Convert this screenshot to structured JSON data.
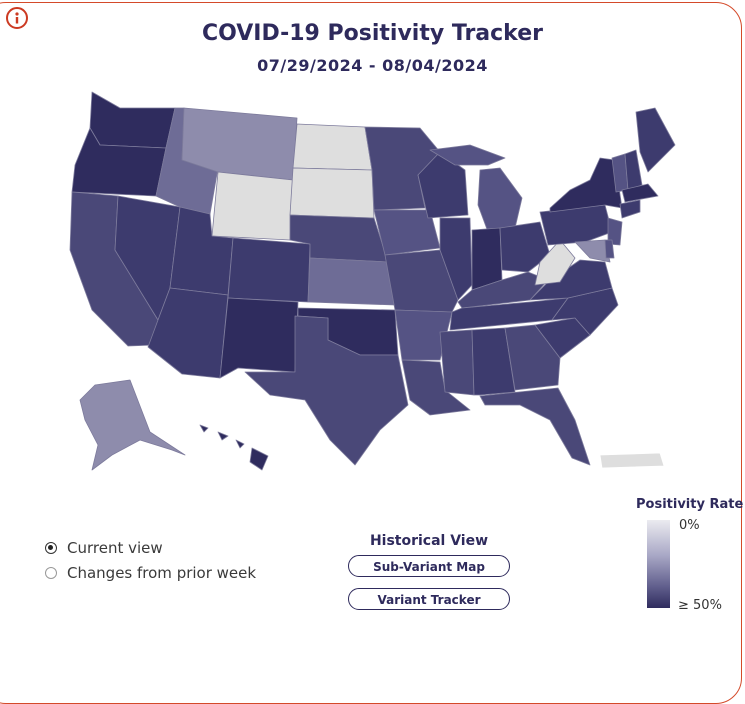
{
  "title": "COVID-19 Positivity Tracker",
  "date_range": "07/29/2024 - 08/04/2024",
  "view_options": [
    {
      "label": "Current view",
      "selected": true
    },
    {
      "label": "Changes from prior week",
      "selected": false
    }
  ],
  "historical": {
    "title": "Historical View",
    "buttons": [
      "Sub-Variant Map",
      "Variant Tracker"
    ]
  },
  "legend": {
    "title": "Positivity Rate",
    "low_label": "0%",
    "high_label": "≥ 50%"
  },
  "colors": {
    "darkest": "#2f2c5e",
    "dark": "#3d3b6e",
    "mid_dark": "#4a4878",
    "mid": "#555384",
    "mid_light": "#6e6c96",
    "light": "#8e8cac",
    "very_light": "#dedede",
    "border_accent": "#d44a2a"
  },
  "map_shading": {
    "Washington": "darkest",
    "Oregon": "darkest",
    "New York": "darkest",
    "Massachusetts": "darkest",
    "New Mexico": "darkest",
    "Oklahoma": "darkest",
    "Hawaii": "darkest",
    "Montana": "light",
    "Kansas": "mid_light",
    "Idaho": "mid_light",
    "West Virginia": "very_light",
    "Alaska": "light",
    "Maryland": "light",
    "North Dakota": "very_light",
    "South Dakota": "very_light",
    "Wyoming": "very_light",
    "Puerto Rico": "very_light"
  }
}
